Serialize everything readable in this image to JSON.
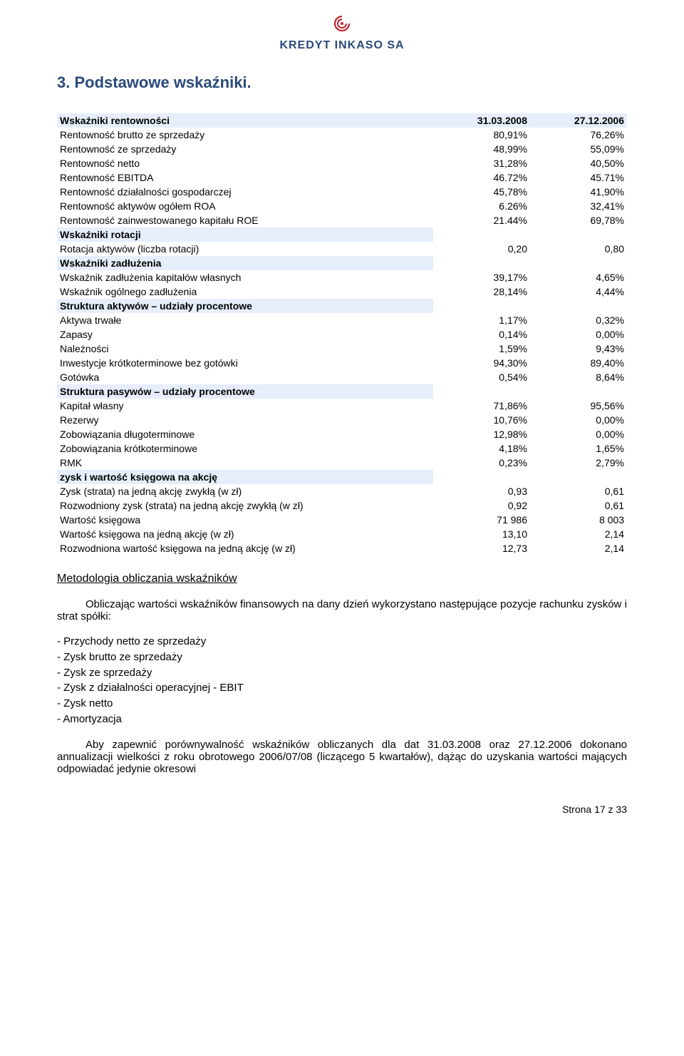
{
  "logo": {
    "brand": "KREDYT INKASO SA"
  },
  "heading": "3. Podstawowe wskaźniki.",
  "table": {
    "header": {
      "label": "Wskaźniki rentowności",
      "c1": "31.03.2008",
      "c2": "27.12.2006"
    },
    "rows": [
      {
        "type": "data",
        "label": "Rentowność brutto ze sprzedaży",
        "c1": "80,91%",
        "c2": "76,26%"
      },
      {
        "type": "data",
        "label": "Rentowność ze sprzedaży",
        "c1": "48,99%",
        "c2": "55,09%"
      },
      {
        "type": "data",
        "label": "Rentowność netto",
        "c1": "31,28%",
        "c2": "40,50%"
      },
      {
        "type": "data",
        "label": "Rentowność EBITDA",
        "c1": "46.72%",
        "c2": "45.71%"
      },
      {
        "type": "data",
        "label": "Rentowność działalności gospodarczej",
        "c1": "45,78%",
        "c2": "41,90%"
      },
      {
        "type": "data",
        "label": "Rentowność aktywów ogółem ROA",
        "c1": "6.26%",
        "c2": "32,41%"
      },
      {
        "type": "data",
        "label": "Rentowność zainwestowanego kapitału ROE",
        "c1": "21.44%",
        "c2": "69,78%"
      },
      {
        "type": "sub",
        "label": "Wskaźniki rotacji"
      },
      {
        "type": "data",
        "label": "Rotacja aktywów (liczba rotacji)",
        "c1": "0,20",
        "c2": "0,80"
      },
      {
        "type": "sub",
        "label": "Wskaźniki zadłużenia"
      },
      {
        "type": "data",
        "label": "Wskaźnik zadłużenia kapitałów własnych",
        "c1": "39,17%",
        "c2": "4,65%"
      },
      {
        "type": "data",
        "label": "Wskaźnik ogólnego zadłużenia",
        "c1": "28,14%",
        "c2": "4,44%"
      },
      {
        "type": "sub",
        "label": "Struktura aktywów – udziały procentowe"
      },
      {
        "type": "data",
        "label": "Aktywa trwałe",
        "c1": "1,17%",
        "c2": "0,32%"
      },
      {
        "type": "data",
        "label": "Zapasy",
        "c1": "0,14%",
        "c2": "0,00%"
      },
      {
        "type": "data",
        "label": "Należności",
        "c1": "1,59%",
        "c2": "9,43%"
      },
      {
        "type": "data",
        "label": "Inwestycje krótkoterminowe bez gotówki",
        "c1": "94,30%",
        "c2": "89,40%"
      },
      {
        "type": "data",
        "label": "Gotówka",
        "c1": "0,54%",
        "c2": "8,64%"
      },
      {
        "type": "sub",
        "label": "Struktura pasywów – udziały procentowe"
      },
      {
        "type": "data",
        "label": "Kapitał własny",
        "c1": "71,86%",
        "c2": "95,56%"
      },
      {
        "type": "data",
        "label": "Rezerwy",
        "c1": "10,76%",
        "c2": "0,00%"
      },
      {
        "type": "data",
        "label": "Zobowiązania długoterminowe",
        "c1": "12,98%",
        "c2": "0,00%"
      },
      {
        "type": "data",
        "label": "Zobowiązania krótkoterminowe",
        "c1": "4,18%",
        "c2": "1,65%"
      },
      {
        "type": "data",
        "label": "RMK",
        "c1": "0,23%",
        "c2": "2,79%"
      },
      {
        "type": "sub",
        "label": "zysk i wartość księgowa na akcję"
      },
      {
        "type": "data",
        "label": "Zysk (strata) na jedną akcję zwykłą (w zł)",
        "c1": "0,93",
        "c2": "0,61"
      },
      {
        "type": "data",
        "label": "Rozwodniony zysk (strata) na jedną akcję zwykłą (w zł)",
        "c1": "0,92",
        "c2": "0,61"
      },
      {
        "type": "data",
        "label": "Wartość księgowa",
        "c1": "71 986",
        "c2": "8 003"
      },
      {
        "type": "data",
        "label": "Wartość księgowa na jedną akcję (w zł)",
        "c1": "13,10",
        "c2": "2,14"
      },
      {
        "type": "data",
        "label": "Rozwodniona wartość księgowa na jedną akcję (w zł)",
        "c1": "12,73",
        "c2": "2,14"
      }
    ]
  },
  "methodology_title": "Metodologia obliczania wskaźników",
  "para1": "Obliczając wartości wskaźników finansowych na dany dzień wykorzystano następujące pozycje rachunku zysków i strat spółki:",
  "list": [
    "- Przychody netto ze sprzedaży",
    "- Zysk brutto ze sprzedaży",
    "- Zysk ze sprzedaży",
    "- Zysk z działalności operacyjnej  - EBIT",
    "- Zysk netto",
    "- Amortyzacja"
  ],
  "para2": "Aby zapewnić porównywalność wskaźników obliczanych dla dat 31.03.2008 oraz 27.12.2006 dokonano annualizacji wielkości z  roku obrotowego 2006/07/08 (liczącego 5 kwartałów), dążąc do uzyskania wartości mających odpowiadać jedynie okresowi",
  "footer": "Strona 17 z 33",
  "colors": {
    "heading": "#2a4a7a",
    "row_highlight": "#e6eefc",
    "logo_red": "#c1272d"
  }
}
